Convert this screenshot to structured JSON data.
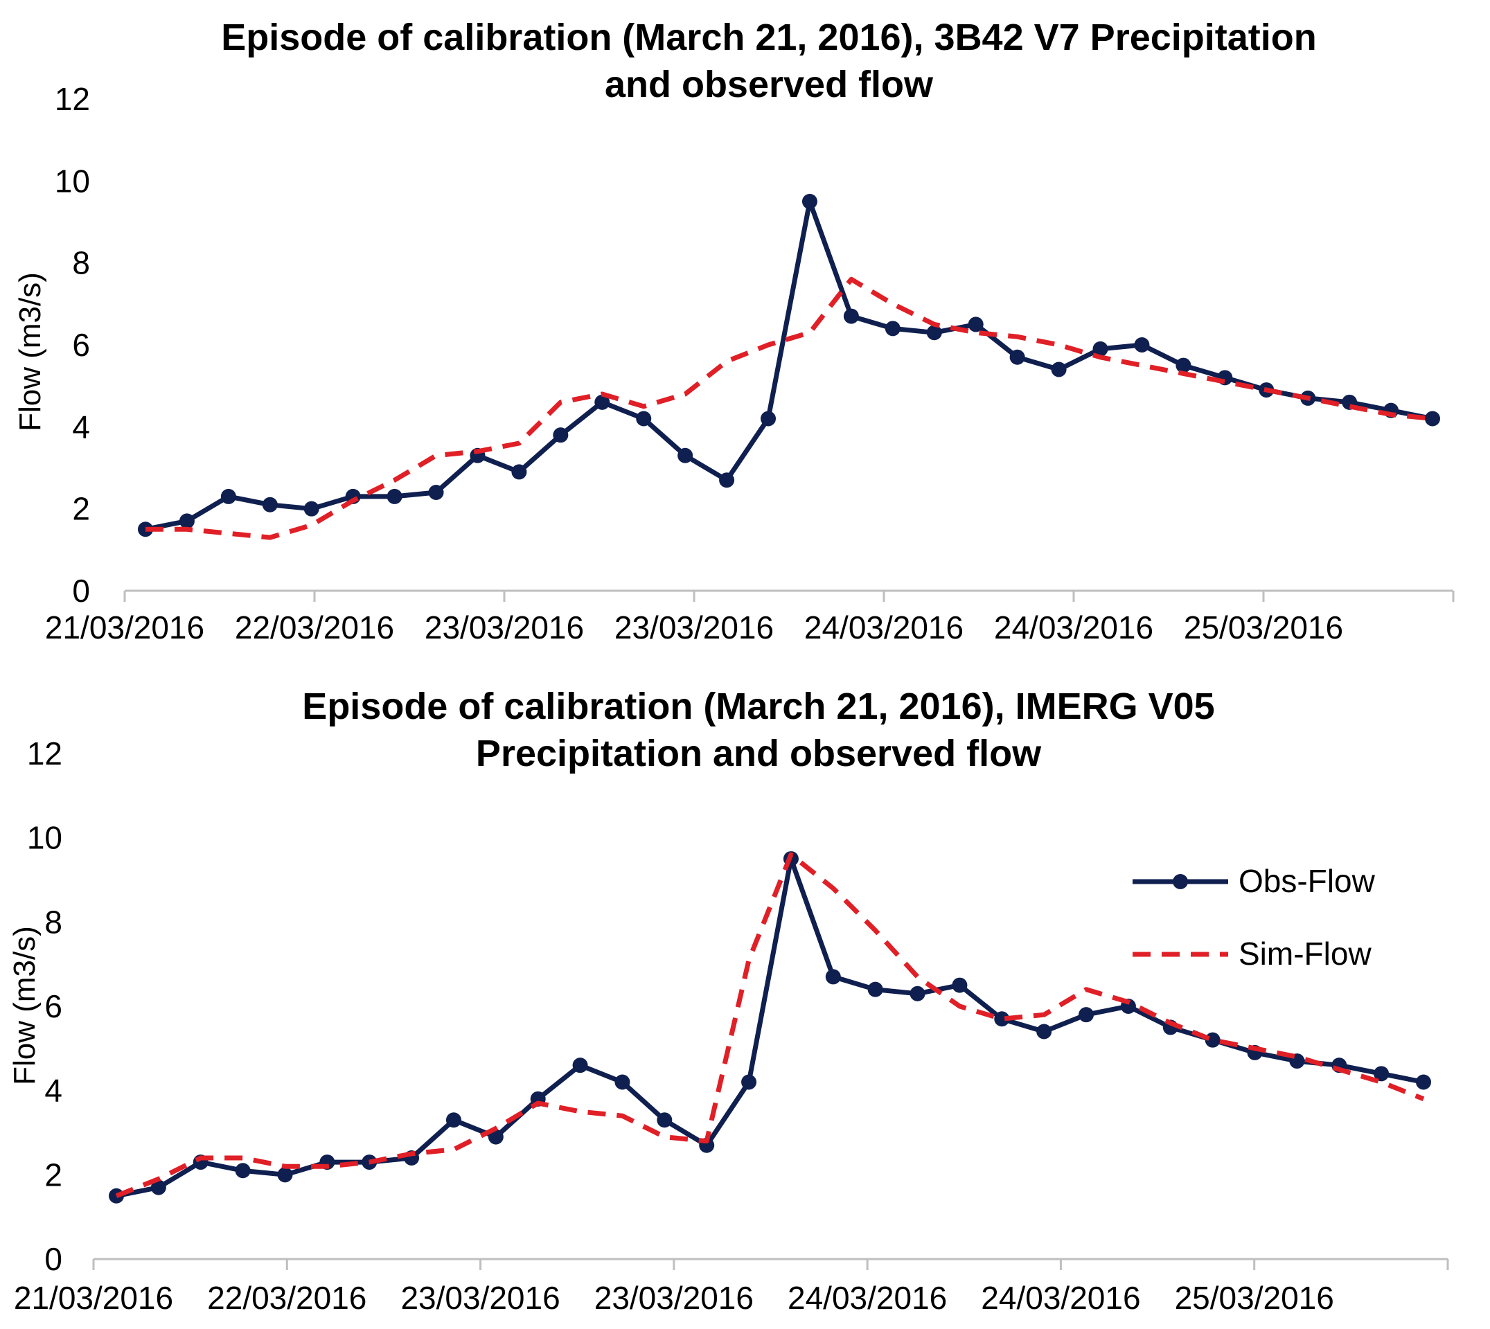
{
  "colors": {
    "obs": "#0f1f4f",
    "sim": "#e01f26",
    "axis": "#bfbfbf",
    "text": "#000000"
  },
  "legend": {
    "obs_label": "Obs-Flow",
    "sim_label": "Sim-Flow"
  },
  "chart_data": [
    {
      "type": "line",
      "title_lines": [
        "Episode of calibration (March 21, 2016), 3B42 V7 Precipitation",
        "and observed flow"
      ],
      "xlabel": "",
      "ylabel": "Flow (m3/s)",
      "ylim": [
        0,
        12
      ],
      "yticks": [
        0,
        2,
        4,
        6,
        8,
        10,
        12
      ],
      "grid": false,
      "xtick_labels": [
        "21/03/2016",
        "22/03/2016",
        "23/03/2016",
        "23/03/2016",
        "24/03/2016",
        "24/03/2016",
        "25/03/2016"
      ],
      "series": [
        {
          "name": "Obs-Flow",
          "style": "solid-marker",
          "values": [
            1.5,
            1.7,
            2.3,
            2.1,
            2.0,
            2.3,
            2.3,
            2.4,
            3.3,
            2.9,
            3.8,
            4.6,
            4.2,
            3.3,
            2.7,
            4.2,
            9.5,
            6.7,
            6.4,
            6.3,
            6.5,
            5.7,
            5.4,
            5.9,
            6.0,
            5.5,
            5.2,
            4.9,
            4.7,
            4.6,
            4.4,
            4.2
          ]
        },
        {
          "name": "Sim-Flow",
          "style": "dashed",
          "values": [
            1.5,
            1.5,
            1.4,
            1.3,
            1.6,
            2.2,
            2.7,
            3.3,
            3.4,
            3.6,
            4.6,
            4.8,
            4.5,
            4.8,
            5.6,
            6.0,
            6.3,
            7.6,
            7.0,
            6.5,
            6.3,
            6.2,
            6.0,
            5.7,
            5.5,
            5.3,
            5.1,
            4.9,
            4.7,
            4.5,
            4.3,
            4.2
          ]
        }
      ]
    },
    {
      "type": "line",
      "title_lines": [
        "Episode of calibration (March 21, 2016), IMERG V05",
        "Precipitation and observed flow"
      ],
      "xlabel": "",
      "ylabel": "Flow (m3/s)",
      "ylim": [
        0,
        12
      ],
      "yticks": [
        0,
        2,
        4,
        6,
        8,
        10,
        12
      ],
      "grid": false,
      "legend_position": "right",
      "xtick_labels": [
        "21/03/2016",
        "22/03/2016",
        "23/03/2016",
        "23/03/2016",
        "24/03/2016",
        "24/03/2016",
        "25/03/2016"
      ],
      "series": [
        {
          "name": "Obs-Flow",
          "style": "solid-marker",
          "values": [
            1.5,
            1.7,
            2.3,
            2.1,
            2.0,
            2.3,
            2.3,
            2.4,
            3.3,
            2.9,
            3.8,
            4.6,
            4.2,
            3.3,
            2.7,
            4.2,
            9.5,
            6.7,
            6.4,
            6.3,
            6.5,
            5.7,
            5.4,
            5.8,
            6.0,
            5.5,
            5.2,
            4.9,
            4.7,
            4.6,
            4.4,
            4.2
          ]
        },
        {
          "name": "Sim-Flow",
          "style": "dashed",
          "values": [
            1.5,
            1.9,
            2.4,
            2.4,
            2.2,
            2.2,
            2.3,
            2.5,
            2.6,
            3.1,
            3.7,
            3.5,
            3.4,
            2.9,
            2.8,
            7.1,
            9.6,
            8.8,
            7.8,
            6.7,
            6.0,
            5.7,
            5.8,
            6.4,
            6.1,
            5.6,
            5.2,
            5.0,
            4.8,
            4.5,
            4.2,
            3.8
          ]
        }
      ]
    }
  ]
}
